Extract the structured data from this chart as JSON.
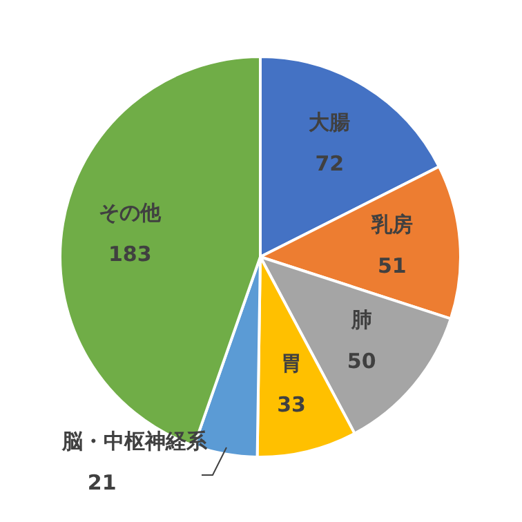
{
  "chart_data": {
    "type": "pie",
    "categories": [
      "大腸",
      "乳房",
      "肺",
      "胃",
      "脳・中枢神経系",
      "その他"
    ],
    "values": [
      72,
      51,
      50,
      33,
      21,
      183
    ],
    "colors": [
      "#4472c4",
      "#ed7d31",
      "#a5a5a5",
      "#ffc000",
      "#5b9bd5",
      "#70ad47"
    ],
    "data_labels": true,
    "legend": false
  }
}
